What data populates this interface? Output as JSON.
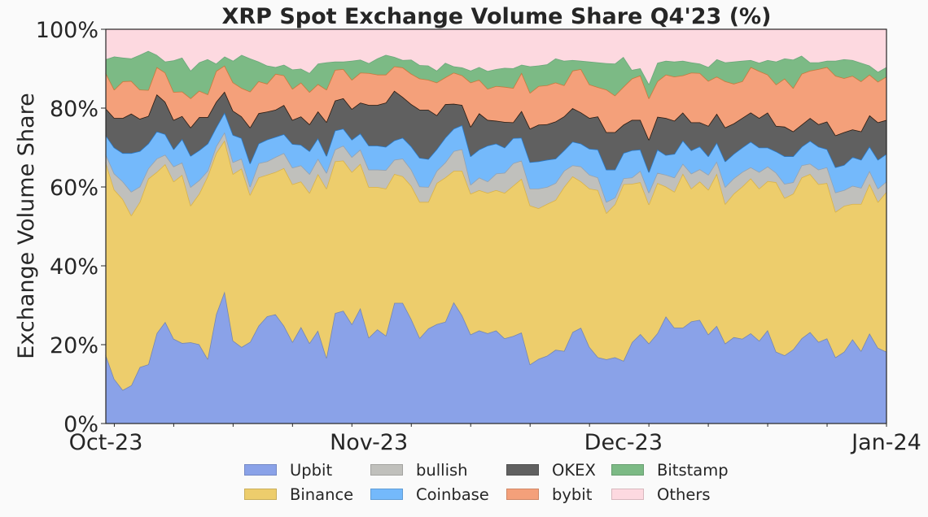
{
  "chart_data": {
    "type": "area",
    "stacked": true,
    "title": "XRP Spot Exchange Volume Share Q4'23 (%)",
    "xlabel": "",
    "ylabel": "Exchange Volume Share",
    "xlim": [
      "2023-10-01",
      "2024-01-01"
    ],
    "ylim": [
      0,
      100
    ],
    "x_ticks": [
      {
        "label": "Oct-23",
        "date": "2023-10-01"
      },
      {
        "label": "Nov-23",
        "date": "2023-11-01"
      },
      {
        "label": "Dec-23",
        "date": "2023-12-01"
      },
      {
        "label": "Jan-24",
        "date": "2024-01-01"
      }
    ],
    "y_ticks": [
      {
        "label": "0%",
        "value": 0
      },
      {
        "label": "20%",
        "value": 20
      },
      {
        "label": "40%",
        "value": 40
      },
      {
        "label": "60%",
        "value": 60
      },
      {
        "label": "80%",
        "value": 80
      },
      {
        "label": "100%",
        "value": 100
      }
    ],
    "grid": false,
    "legend_position": "bottom",
    "series": [
      {
        "name": "Upbit",
        "color": "#8aa2e8",
        "edge": "#7486b0",
        "values": [
          17.4,
          11.3,
          8.5,
          9.7,
          14.3,
          15.0,
          22.9,
          25.8,
          21.5,
          20.4,
          20.6,
          20.1,
          16.4,
          27.7,
          33.5,
          21.0,
          19.4,
          20.7,
          24.8,
          27.2,
          27.7,
          24.8,
          20.7,
          24.5,
          20.4,
          23.6,
          16.7,
          28.0,
          28.6,
          25.2,
          29.3,
          21.8,
          23.9,
          22.3,
          30.6,
          30.6,
          26.5,
          21.7,
          24.1,
          25.2,
          25.8,
          30.8,
          27.4,
          22.6,
          23.6,
          22.9,
          23.6,
          21.6,
          22.2,
          23.1,
          15.0,
          16.4,
          17.2,
          18.7,
          18.4,
          23.2,
          24.3,
          19.4,
          16.8,
          16.3,
          16.8,
          15.9,
          20.6,
          22.7,
          20.3,
          22.9,
          27.2,
          24.3,
          24.3,
          25.9,
          26.3,
          22.6,
          24.8,
          20.3,
          21.9,
          21.5,
          22.9,
          21.0,
          23.7,
          18.2,
          17.3,
          18.8,
          21.6,
          23.2,
          20.7,
          21.6,
          16.8,
          18.2,
          21.4,
          18.4,
          22.9,
          19.2,
          18.2
        ]
      },
      {
        "name": "Binance",
        "color": "#edcd6c",
        "edge": "#d8b24a",
        "values": [
          48.8,
          48.0,
          48.4,
          43.1,
          41.9,
          47.1,
          40.9,
          40.0,
          39.9,
          42.7,
          34.7,
          38.2,
          46.3,
          40.9,
          38.3,
          42.3,
          45.3,
          37.3,
          37.6,
          35.9,
          36.1,
          40.0,
          40.0,
          36.9,
          38.1,
          39.7,
          42.9,
          38.5,
          38.1,
          38.6,
          36.6,
          38.2,
          36.1,
          37.3,
          32.7,
          32.1,
          33.8,
          34.5,
          32.1,
          35.8,
          36.6,
          33.3,
          36.7,
          35.7,
          35.6,
          35.6,
          35.6,
          36.9,
          38.1,
          39.0,
          40.3,
          38.2,
          38.5,
          38.0,
          41.6,
          39.5,
          37.1,
          40.2,
          42.4,
          37.1,
          38.8,
          44.8,
          40.2,
          38.5,
          35.3,
          38.1,
          32.9,
          34.5,
          39.1,
          33.7,
          35.1,
          36.7,
          38.6,
          35.4,
          36.4,
          38.6,
          39.3,
          38.6,
          37.8,
          43.0,
          39.9,
          39.5,
          40.8,
          40.1,
          40.0,
          39.4,
          36.9,
          37.0,
          34.3,
          37.3,
          37.9,
          37.0,
          40.6
        ]
      },
      {
        "name": "bullish",
        "color": "#c0c0bc",
        "edge": "#94a2b0",
        "values": [
          2.1,
          4.1,
          4.5,
          6.0,
          3.9,
          2.6,
          3.4,
          2.4,
          3.8,
          3.1,
          4.7,
          3.4,
          1.4,
          1.7,
          2.1,
          3.0,
          2.5,
          2.1,
          3.6,
          3.4,
          3.8,
          3.8,
          4.2,
          4.1,
          4.8,
          3.9,
          4.0,
          3.0,
          3.8,
          3.8,
          3.6,
          4.4,
          4.4,
          4.7,
          3.6,
          4.5,
          4.1,
          3.9,
          3.8,
          3.1,
          3.8,
          5.0,
          5.5,
          2.3,
          3.2,
          2.9,
          4.2,
          5.1,
          5.7,
          4.6,
          4.3,
          5.0,
          4.3,
          4.3,
          4.1,
          2.8,
          3.8,
          3.5,
          3.2,
          2.8,
          1.7,
          1.5,
          1.6,
          2.9,
          3.0,
          2.6,
          3.0,
          3.6,
          2.5,
          3.8,
          3.1,
          3.8,
          3.1,
          4.3,
          3.9,
          3.7,
          2.8,
          4.2,
          3.7,
          2.4,
          3.6,
          2.9,
          3.1,
          2.6,
          3.7,
          4.0,
          4.9,
          4.0,
          4.6,
          4.1,
          3.3,
          3.4,
          2.6
        ]
      },
      {
        "name": "Coinbase",
        "color": "#74b9fb",
        "edge": "#2a78c4",
        "values": [
          4.8,
          6.6,
          7.2,
          9.8,
          9.0,
          6.3,
          6.9,
          5.2,
          4.4,
          6.0,
          7.9,
          7.6,
          6.9,
          4.8,
          5.0,
          6.9,
          5.2,
          5.9,
          5.0,
          5.5,
          5.1,
          4.8,
          6.0,
          5.2,
          5.8,
          5.2,
          4.3,
          4.8,
          4.3,
          4.4,
          4.1,
          6.1,
          6.1,
          5.9,
          4.9,
          5.3,
          5.9,
          7.3,
          7.1,
          5.5,
          6.3,
          5.7,
          6.1,
          7.2,
          7.1,
          9.1,
          7.6,
          6.4,
          6.4,
          5.8,
          6.7,
          6.9,
          6.9,
          6.2,
          5.2,
          6.0,
          5.8,
          6.6,
          7.1,
          8.2,
          7.1,
          6.4,
          6.9,
          5.4,
          5.2,
          5.9,
          5.0,
          6.0,
          5.9,
          5.9,
          5.8,
          4.7,
          4.8,
          6.5,
          6.2,
          6.2,
          6.5,
          6.2,
          4.8,
          5.4,
          7.0,
          6.6,
          4.7,
          5.8,
          5.8,
          4.6,
          6.4,
          6.4,
          7.3,
          7.1,
          6.2,
          7.3,
          7.0
        ]
      },
      {
        "name": "OKEX",
        "color": "#606060",
        "edge": "#2a1a10",
        "values": [
          6.8,
          7.5,
          8.9,
          10.0,
          8.2,
          7.0,
          9.4,
          8.2,
          7.4,
          5.8,
          7.2,
          8.4,
          6.7,
          6.5,
          5.3,
          6.1,
          5.5,
          9.1,
          7.7,
          7.1,
          6.9,
          7.4,
          6.1,
          7.2,
          6.8,
          6.8,
          8.6,
          7.6,
          7.7,
          7.8,
          7.8,
          10.3,
          10.3,
          11.2,
          12.6,
          10.3,
          10.7,
          12.2,
          12.5,
          8.6,
          8.5,
          6.3,
          5.1,
          7.5,
          9.2,
          6.5,
          5.8,
          6.5,
          4.0,
          6.8,
          8.5,
          9.3,
          9.0,
          9.4,
          8.6,
          8.5,
          7.9,
          7.8,
          8.4,
          9.5,
          9.5,
          7.2,
          7.7,
          7.5,
          8.2,
          8.3,
          9.4,
          8.4,
          7.1,
          7.1,
          6.1,
          7.7,
          7.3,
          8.6,
          7.7,
          7.5,
          7.4,
          7.5,
          8.9,
          6.5,
          7.5,
          6.3,
          5.6,
          5.8,
          5.7,
          7.0,
          8.1,
          8.3,
          7.0,
          7.2,
          7.9,
          9.5,
          8.6
        ]
      },
      {
        "name": "bybit",
        "color": "#f4a07a",
        "edge": "#c67a3c",
        "values": [
          9.0,
          7.2,
          9.3,
          8.3,
          7.4,
          6.6,
          6.9,
          7.4,
          7.1,
          6.2,
          7.4,
          6.7,
          5.8,
          7.8,
          6.6,
          7.2,
          7.2,
          9.1,
          8.1,
          7.1,
          9.1,
          7.5,
          7.9,
          8.6,
          8.2,
          6.9,
          8.2,
          7.8,
          7.4,
          7.4,
          7.6,
          8.1,
          7.7,
          7.1,
          6.2,
          7.5,
          7.7,
          7.9,
          7.6,
          8.3,
          6.8,
          7.9,
          7.5,
          11.2,
          8.5,
          7.9,
          8.8,
          8.9,
          8.7,
          9.7,
          9.1,
          9.8,
          9.9,
          9.9,
          7.9,
          9.5,
          11.0,
          8.5,
          7.4,
          10.8,
          9.3,
          9.6,
          10.5,
          11.3,
          10.5,
          9.0,
          11.0,
          11.2,
          9.4,
          12.6,
          12.5,
          11.4,
          9.4,
          11.7,
          10.1,
          9.3,
          11.5,
          11.9,
          9.6,
          10.5,
          12.2,
          11.0,
          12.9,
          12.0,
          14.0,
          13.8,
          15.1,
          13.7,
          13.6,
          12.7,
          10.3,
          10.3,
          11.0
        ]
      },
      {
        "name": "Bitstamp",
        "color": "#7cba85",
        "edge": "#6aa87a",
        "values": [
          3.5,
          8.4,
          6.0,
          5.7,
          8.8,
          9.9,
          3.1,
          2.8,
          8.0,
          8.6,
          7.0,
          7.2,
          8.9,
          1.9,
          2.3,
          5.5,
          8.4,
          8.4,
          5.0,
          4.6,
          1.7,
          2.7,
          4.9,
          3.5,
          4.8,
          5.2,
          6.9,
          2.1,
          1.9,
          4.8,
          3.3,
          2.5,
          4.1,
          5.0,
          2.4,
          1.9,
          3.6,
          3.4,
          3.6,
          3.0,
          3.7,
          1.6,
          2.0,
          3.0,
          3.2,
          4.5,
          4.3,
          4.8,
          5.0,
          2.0,
          6.7,
          5.2,
          5.3,
          6.1,
          6.2,
          2.7,
          2.1,
          5.8,
          6.3,
          6.7,
          8.1,
          7.6,
          2.2,
          1.8,
          3.6,
          4.7,
          3.5,
          3.8,
          3.7,
          2.6,
          2.4,
          3.5,
          4.4,
          4.8,
          5.6,
          5.2,
          1.8,
          2.1,
          3.7,
          5.8,
          5.1,
          7.2,
          4.6,
          2.1,
          1.7,
          1.6,
          3.8,
          4.8,
          4.0,
          4.7,
          2.3,
          2.5,
          2.4
        ]
      },
      {
        "name": "Others",
        "color": "#fdd9e0",
        "edge": "#fdd9e0",
        "values": [
          7.6,
          6.9,
          7.2,
          7.4,
          6.5,
          5.5,
          6.5,
          8.2,
          7.9,
          7.2,
          10.5,
          8.4,
          7.6,
          8.7,
          6.9,
          8.0,
          6.5,
          7.4,
          8.2,
          9.2,
          9.6,
          9.0,
          10.2,
          10.0,
          11.1,
          8.7,
          8.4,
          8.2,
          8.2,
          8.0,
          7.7,
          8.6,
          7.4,
          6.5,
          7.0,
          7.8,
          7.7,
          9.1,
          9.2,
          10.5,
          8.5,
          9.4,
          9.7,
          10.5,
          9.6,
          10.6,
          10.1,
          9.8,
          9.9,
          9.0,
          9.4,
          9.2,
          8.9,
          7.4,
          8.0,
          7.8,
          8.0,
          8.2,
          8.4,
          8.6,
          8.7,
          7.0,
          10.3,
          9.9,
          13.9,
          8.5,
          8.0,
          8.2,
          8.0,
          8.4,
          8.7,
          9.6,
          7.6,
          8.4,
          8.2,
          8.0,
          7.8,
          8.5,
          7.8,
          8.2,
          7.4,
          7.7,
          6.7,
          8.4,
          8.4,
          8.0,
          8.0,
          7.6,
          7.8,
          8.5,
          9.2,
          10.8,
          9.6
        ]
      }
    ]
  }
}
